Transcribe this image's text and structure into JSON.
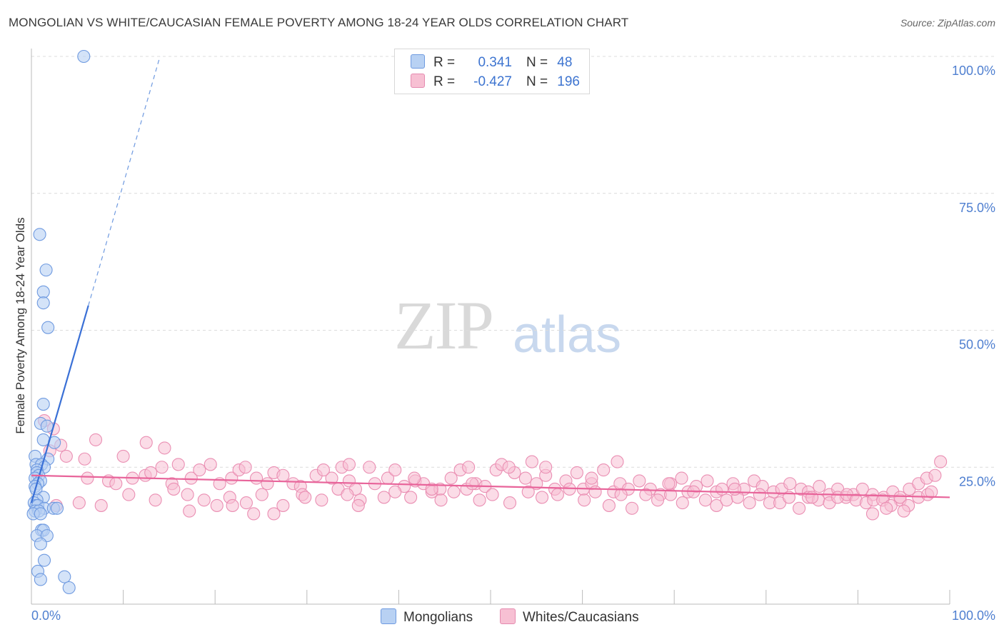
{
  "title": "MONGOLIAN VS WHITE/CAUCASIAN FEMALE POVERTY AMONG 18-24 YEAR OLDS CORRELATION CHART",
  "source": "Source: ZipAtlas.com",
  "watermark": {
    "zip": "ZIP",
    "atlas": "atlas"
  },
  "legend": {
    "r_label": "R =",
    "n_label": "N =",
    "mongolians": {
      "r": "0.341",
      "n": "48"
    },
    "whites": {
      "r": "-0.427",
      "n": "196"
    }
  },
  "bottom_legend": {
    "mongolians": "Mongolians",
    "whites": "Whites/Caucasians"
  },
  "colors": {
    "blue": "#3a70d6",
    "blue_fill": "#b8d1f3",
    "pink": "#e8649a",
    "pink_fill": "#f7c0d3",
    "axis_text": "#4f7fd0"
  },
  "chart_data": {
    "type": "scatter",
    "title": "MONGOLIAN VS WHITE/CAUCASIAN FEMALE POVERTY AMONG 18-24 YEAR OLDS CORRELATION CHART",
    "xlabel": "",
    "ylabel": "Female Poverty Among 18-24 Year Olds",
    "xlim": [
      0,
      100
    ],
    "ylim": [
      0,
      100
    ],
    "x_tick_labels": [
      "0.0%",
      "100.0%"
    ],
    "y_tick_labels": [
      "25.0%",
      "50.0%",
      "75.0%",
      "100.0%"
    ],
    "y_ticks": [
      25,
      50,
      75,
      100
    ],
    "grid": true,
    "series": [
      {
        "name": "Mongolians",
        "color": "#3a70d6",
        "trend": {
          "x": [
            0,
            6.2
          ],
          "y": [
            18.5,
            54.5
          ],
          "dashed_to": [
            14,
            100
          ]
        },
        "points": [
          [
            5.7,
            100
          ],
          [
            0.9,
            67.5
          ],
          [
            1.6,
            61
          ],
          [
            1.3,
            57
          ],
          [
            1.3,
            55
          ],
          [
            1.8,
            50.5
          ],
          [
            1.3,
            36.5
          ],
          [
            1.0,
            33
          ],
          [
            1.7,
            32.5
          ],
          [
            1.3,
            30
          ],
          [
            2.5,
            29.5
          ],
          [
            0.4,
            27
          ],
          [
            1.8,
            26.5
          ],
          [
            0.5,
            25.5
          ],
          [
            1.1,
            25.5
          ],
          [
            1.4,
            25
          ],
          [
            0.6,
            24.5
          ],
          [
            0.6,
            24
          ],
          [
            0.8,
            23.5
          ],
          [
            0.4,
            23
          ],
          [
            1.0,
            22.5
          ],
          [
            0.7,
            22
          ],
          [
            0.4,
            21.5
          ],
          [
            0.5,
            21
          ],
          [
            1.3,
            19.5
          ],
          [
            0.6,
            19
          ],
          [
            0.3,
            18.5
          ],
          [
            0.5,
            18
          ],
          [
            0.7,
            18
          ],
          [
            1.4,
            17.5
          ],
          [
            2.4,
            17.5
          ],
          [
            2.8,
            17.5
          ],
          [
            0.4,
            17
          ],
          [
            0.8,
            17
          ],
          [
            0.2,
            16.5
          ],
          [
            1.0,
            16.5
          ],
          [
            1.1,
            13.5
          ],
          [
            1.3,
            13.5
          ],
          [
            0.6,
            12.5
          ],
          [
            1.7,
            12.5
          ],
          [
            1.0,
            11
          ],
          [
            1.4,
            8
          ],
          [
            0.7,
            6
          ],
          [
            1.0,
            4.5
          ],
          [
            3.6,
            5
          ],
          [
            4.1,
            3
          ]
        ]
      },
      {
        "name": "Whites/Caucasians",
        "color": "#e8649a",
        "trend": {
          "x": [
            0,
            100
          ],
          "y": [
            23.5,
            19.5
          ]
        },
        "points": [
          [
            1.4,
            33.5
          ],
          [
            2.4,
            32
          ],
          [
            3.2,
            29
          ],
          [
            2.0,
            28
          ],
          [
            7.0,
            30
          ],
          [
            12.5,
            29.5
          ],
          [
            3.8,
            27
          ],
          [
            5.8,
            26.5
          ],
          [
            10.0,
            27
          ],
          [
            14.5,
            28.5
          ],
          [
            16.0,
            25.5
          ],
          [
            6.1,
            23
          ],
          [
            8.4,
            22.5
          ],
          [
            9.2,
            22
          ],
          [
            11.0,
            23
          ],
          [
            12.4,
            23.5
          ],
          [
            13.0,
            24
          ],
          [
            14.2,
            25
          ],
          [
            15.3,
            22
          ],
          [
            17.4,
            23
          ],
          [
            18.3,
            24.5
          ],
          [
            19.5,
            25.5
          ],
          [
            20.5,
            22
          ],
          [
            21.8,
            23
          ],
          [
            22.6,
            24.5
          ],
          [
            23.3,
            25
          ],
          [
            24.5,
            23
          ],
          [
            25.7,
            22
          ],
          [
            26.4,
            24
          ],
          [
            27.4,
            23.5
          ],
          [
            28.5,
            22
          ],
          [
            29.3,
            21.5
          ],
          [
            31.0,
            23.5
          ],
          [
            32.7,
            23
          ],
          [
            33.8,
            25
          ],
          [
            34.6,
            22.5
          ],
          [
            35.3,
            21
          ],
          [
            36.8,
            25
          ],
          [
            37.4,
            22
          ],
          [
            38.8,
            23
          ],
          [
            39.6,
            24.5
          ],
          [
            40.6,
            21.5
          ],
          [
            41.8,
            22.5
          ],
          [
            42.7,
            22
          ],
          [
            43.6,
            20.5
          ],
          [
            44.5,
            21
          ],
          [
            45.7,
            23
          ],
          [
            46.7,
            24.5
          ],
          [
            47.6,
            25
          ],
          [
            48.4,
            22
          ],
          [
            49.4,
            21.5
          ],
          [
            50.6,
            24.5
          ],
          [
            51.2,
            25.5
          ],
          [
            52.6,
            24
          ],
          [
            53.8,
            23
          ],
          [
            55.0,
            22
          ],
          [
            56.0,
            23.5
          ],
          [
            57.0,
            21
          ],
          [
            58.2,
            22.5
          ],
          [
            59.4,
            24
          ],
          [
            60.1,
            21
          ],
          [
            61.0,
            22
          ],
          [
            62.3,
            24.5
          ],
          [
            63.4,
            20.5
          ],
          [
            64.1,
            22
          ],
          [
            65.0,
            21
          ],
          [
            66.2,
            22.5
          ],
          [
            67.4,
            21
          ],
          [
            68.5,
            20
          ],
          [
            69.6,
            22
          ],
          [
            70.8,
            23
          ],
          [
            71.5,
            20.5
          ],
          [
            72.4,
            21.5
          ],
          [
            73.6,
            22.5
          ],
          [
            74.6,
            20.5
          ],
          [
            75.2,
            21
          ],
          [
            76.4,
            22
          ],
          [
            77.6,
            21
          ],
          [
            78.7,
            22.5
          ],
          [
            79.6,
            21.5
          ],
          [
            80.8,
            20.5
          ],
          [
            81.7,
            21
          ],
          [
            82.6,
            22
          ],
          [
            83.8,
            21
          ],
          [
            84.6,
            20.5
          ],
          [
            85.8,
            21.5
          ],
          [
            86.9,
            20
          ],
          [
            87.8,
            21
          ],
          [
            88.7,
            19.5
          ],
          [
            89.5,
            20
          ],
          [
            90.5,
            21
          ],
          [
            91.6,
            20
          ],
          [
            92.8,
            19.5
          ],
          [
            93.8,
            20.5
          ],
          [
            94.6,
            19
          ],
          [
            95.6,
            21
          ],
          [
            96.6,
            22
          ],
          [
            97.5,
            23
          ],
          [
            98.4,
            23.5
          ],
          [
            99.0,
            26
          ],
          [
            2.7,
            18
          ],
          [
            5.2,
            18.5
          ],
          [
            7.6,
            18
          ],
          [
            10.6,
            20
          ],
          [
            13.5,
            19
          ],
          [
            15.5,
            21
          ],
          [
            17.0,
            20
          ],
          [
            18.8,
            19
          ],
          [
            20.2,
            18
          ],
          [
            21.6,
            19.5
          ],
          [
            23.4,
            18.5
          ],
          [
            25.1,
            20
          ],
          [
            26.4,
            16.5
          ],
          [
            27.4,
            18
          ],
          [
            29.5,
            20
          ],
          [
            31.6,
            19
          ],
          [
            33.4,
            21
          ],
          [
            34.4,
            20
          ],
          [
            35.8,
            19
          ],
          [
            38.4,
            19.5
          ],
          [
            39.6,
            20.5
          ],
          [
            41.3,
            19.5
          ],
          [
            43.6,
            21
          ],
          [
            44.6,
            19
          ],
          [
            46.0,
            20.5
          ],
          [
            47.4,
            21
          ],
          [
            48.8,
            19
          ],
          [
            50.2,
            20
          ],
          [
            52.1,
            18.5
          ],
          [
            54.1,
            20.5
          ],
          [
            55.6,
            19.5
          ],
          [
            57.3,
            20
          ],
          [
            58.6,
            21
          ],
          [
            60.2,
            19
          ],
          [
            61.4,
            20.5
          ],
          [
            62.9,
            18
          ],
          [
            64.2,
            20
          ],
          [
            65.4,
            17.5
          ],
          [
            66.9,
            20
          ],
          [
            68.2,
            19
          ],
          [
            69.6,
            20
          ],
          [
            70.9,
            18.5
          ],
          [
            72.1,
            20.5
          ],
          [
            73.4,
            19
          ],
          [
            74.6,
            18
          ],
          [
            75.7,
            19
          ],
          [
            76.9,
            19.5
          ],
          [
            78.2,
            18.5
          ],
          [
            79.3,
            20
          ],
          [
            80.4,
            18.5
          ],
          [
            81.5,
            18.5
          ],
          [
            82.5,
            19.5
          ],
          [
            83.6,
            17.5
          ],
          [
            84.6,
            19.5
          ],
          [
            85.7,
            19
          ],
          [
            86.9,
            18.5
          ],
          [
            87.8,
            19.5
          ],
          [
            88.8,
            20
          ],
          [
            89.8,
            19
          ],
          [
            90.9,
            18.5
          ],
          [
            91.7,
            19
          ],
          [
            92.7,
            19
          ],
          [
            93.6,
            18
          ],
          [
            94.6,
            19.5
          ],
          [
            95.5,
            18
          ],
          [
            96.6,
            19.5
          ],
          [
            97.6,
            20
          ],
          [
            98.0,
            20.5
          ],
          [
            52.0,
            25
          ],
          [
            54.5,
            26
          ],
          [
            56.0,
            25
          ],
          [
            63.8,
            26
          ],
          [
            41.7,
            23
          ],
          [
            31.8,
            24.5
          ],
          [
            34.6,
            25.5
          ],
          [
            24.2,
            16.5
          ],
          [
            17.2,
            17
          ],
          [
            21.9,
            18
          ],
          [
            29.8,
            19.5
          ],
          [
            35.6,
            18
          ],
          [
            48.0,
            22
          ],
          [
            61.0,
            23
          ],
          [
            69.4,
            22
          ],
          [
            76.6,
            21
          ],
          [
            85.0,
            19.5
          ],
          [
            93.1,
            17.5
          ],
          [
            95.0,
            17
          ],
          [
            91.6,
            16.5
          ]
        ]
      }
    ]
  }
}
